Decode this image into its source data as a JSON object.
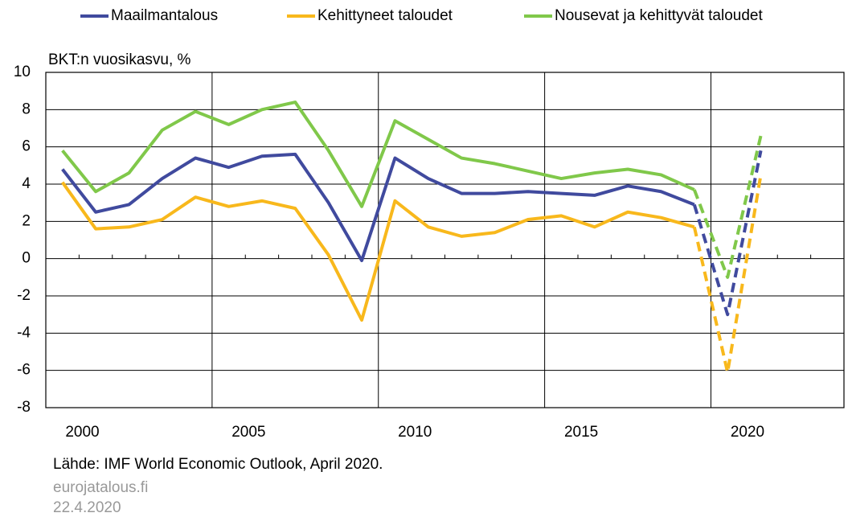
{
  "chart_data": {
    "type": "line",
    "y_label": "BKT:n vuosikasvu, %",
    "source": "Lähde: IMF World Economic Outlook, April 2020.",
    "site": "eurojatalous.fi",
    "date": "22.4.2020",
    "x": [
      2000,
      2001,
      2002,
      2003,
      2004,
      2005,
      2006,
      2007,
      2008,
      2009,
      2010,
      2011,
      2012,
      2013,
      2014,
      2015,
      2016,
      2017,
      2018,
      2019,
      2020,
      2021
    ],
    "xlim": [
      1999.5,
      2023.5
    ],
    "xticks": [
      2000,
      2005,
      2010,
      2015,
      2020
    ],
    "ylim": [
      -8,
      10
    ],
    "yticks": [
      -8,
      -6,
      -4,
      -2,
      0,
      2,
      4,
      6,
      8,
      10
    ],
    "grid": true,
    "dashed_from": 2019,
    "legend": "top",
    "series": [
      {
        "name": "Maailmantalous",
        "color": "#404a9e",
        "values": [
          4.8,
          2.5,
          2.9,
          4.3,
          5.4,
          4.9,
          5.5,
          5.6,
          3.0,
          -0.1,
          5.4,
          4.3,
          3.5,
          3.5,
          3.6,
          3.5,
          3.4,
          3.9,
          3.6,
          2.9,
          -3.0,
          5.8
        ]
      },
      {
        "name": "Kehittyneet taloudet",
        "color": "#f8b81c",
        "values": [
          4.1,
          1.6,
          1.7,
          2.1,
          3.3,
          2.8,
          3.1,
          2.7,
          0.2,
          -3.3,
          3.1,
          1.7,
          1.2,
          1.4,
          2.1,
          2.3,
          1.7,
          2.5,
          2.2,
          1.7,
          -6.1,
          4.5
        ]
      },
      {
        "name": "Nousevat ja kehittyvät taloudet",
        "color": "#80c84a",
        "values": [
          5.8,
          3.6,
          4.6,
          6.9,
          7.9,
          7.2,
          8.0,
          8.4,
          5.8,
          2.8,
          7.4,
          6.4,
          5.4,
          5.1,
          4.7,
          4.3,
          4.6,
          4.8,
          4.5,
          3.7,
          -1.0,
          6.6
        ]
      }
    ]
  }
}
